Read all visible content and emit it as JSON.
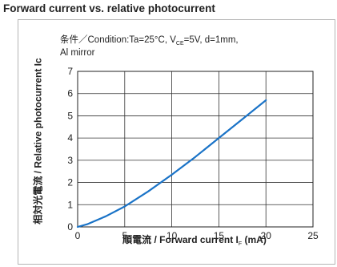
{
  "chart_data": {
    "type": "line",
    "title": "Forward current vs. relative photocurrent",
    "condition_line1_prefix": "条件／Condition:Ta=25°C, V",
    "condition_line1_sub": "CE",
    "condition_line1_suffix": "=5V, d=1mm,",
    "condition_line2": "Al mirror",
    "xlabel_prefix": "順電流 / Forward current I",
    "xlabel_sub": "F",
    "xlabel_suffix": " (mA)",
    "ylabel": "相対光電流 / Relative photocurrent Ic",
    "xlim": [
      0,
      25
    ],
    "ylim": [
      0,
      7
    ],
    "x_ticks": [
      0,
      5,
      10,
      15,
      20,
      25
    ],
    "y_ticks": [
      0,
      1,
      2,
      3,
      4,
      5,
      6,
      7
    ],
    "grid": true,
    "line_color": "#1a73c7",
    "series": [
      {
        "x": [
          0,
          1,
          2,
          3,
          5,
          7.5,
          10,
          12.5,
          15,
          17.5,
          20
        ],
        "y": [
          0,
          0.12,
          0.3,
          0.48,
          0.92,
          1.6,
          2.35,
          3.15,
          4.0,
          4.85,
          5.7
        ]
      }
    ]
  }
}
